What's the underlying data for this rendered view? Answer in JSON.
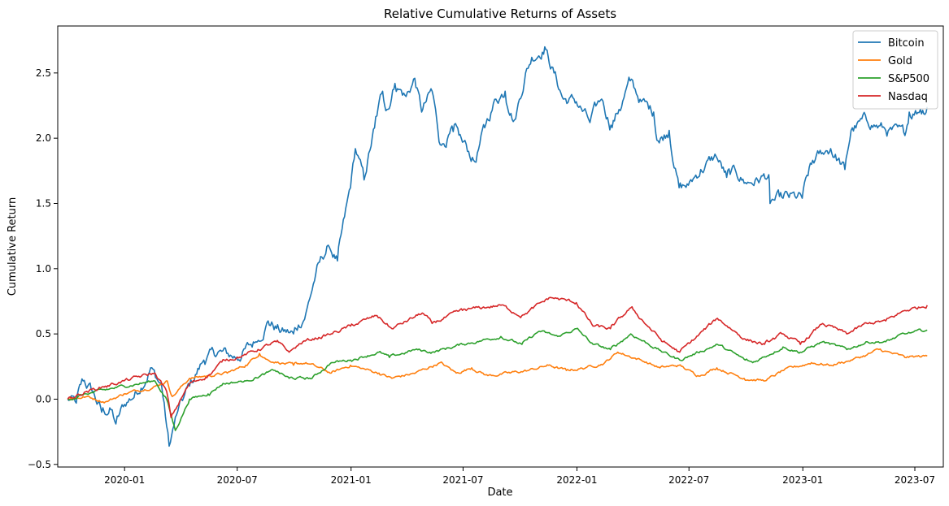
{
  "chart_data": {
    "type": "line",
    "title": "Relative Cumulative Returns of Assets",
    "xlabel": "Date",
    "ylabel": "Cumulative Return",
    "xlim": [
      "2019-09-15",
      "2023-08-16"
    ],
    "ylim": [
      -0.52,
      2.86
    ],
    "x_ticks": [
      "2020-01-01",
      "2020-07-01",
      "2021-01-01",
      "2021-07-01",
      "2022-01-01",
      "2022-07-01",
      "2023-01-01",
      "2023-07-01"
    ],
    "x_tick_labels": [
      "2020-01",
      "2020-07",
      "2021-01",
      "2021-07",
      "2022-01",
      "2022-07",
      "2023-01",
      "2023-07"
    ],
    "y_ticks": [
      -0.5,
      0.0,
      0.5,
      1.0,
      1.5,
      2.0,
      2.5
    ],
    "y_tick_labels": [
      "−0.5",
      "0.0",
      "0.5",
      "1.0",
      "1.5",
      "2.0",
      "2.5"
    ],
    "grid": false,
    "legend_position": "top-right",
    "series": [
      {
        "name": "Bitcoin",
        "color": "#1f77b4",
        "points": [
          [
            "2019-10-01",
            0.0
          ],
          [
            "2019-10-15",
            -0.03
          ],
          [
            "2019-10-26",
            0.14
          ],
          [
            "2019-11-10",
            0.06
          ],
          [
            "2019-11-25",
            -0.1
          ],
          [
            "2019-12-10",
            -0.08
          ],
          [
            "2019-12-18",
            -0.19
          ],
          [
            "2020-01-01",
            -0.04
          ],
          [
            "2020-01-20",
            0.05
          ],
          [
            "2020-02-12",
            0.24
          ],
          [
            "2020-03-01",
            0.1
          ],
          [
            "2020-03-13",
            -0.36
          ],
          [
            "2020-03-25",
            -0.12
          ],
          [
            "2020-04-15",
            0.1
          ],
          [
            "2020-05-08",
            0.3
          ],
          [
            "2020-05-31",
            0.36
          ],
          [
            "2020-06-30",
            0.32
          ],
          [
            "2020-07-31",
            0.44
          ],
          [
            "2020-08-20",
            0.6
          ],
          [
            "2020-09-10",
            0.52
          ],
          [
            "2020-09-30",
            0.5
          ],
          [
            "2020-10-20",
            0.66
          ],
          [
            "2020-11-05",
            0.96
          ],
          [
            "2020-11-25",
            1.18
          ],
          [
            "2020-12-10",
            1.06
          ],
          [
            "2020-12-31",
            1.62
          ],
          [
            "2021-01-08",
            1.92
          ],
          [
            "2021-01-22",
            1.68
          ],
          [
            "2021-02-08",
            2.08
          ],
          [
            "2021-02-21",
            2.36
          ],
          [
            "2021-02-28",
            2.22
          ],
          [
            "2021-03-13",
            2.42
          ],
          [
            "2021-03-31",
            2.32
          ],
          [
            "2021-04-14",
            2.46
          ],
          [
            "2021-04-25",
            2.2
          ],
          [
            "2021-05-12",
            2.36
          ],
          [
            "2021-05-25",
            1.95
          ],
          [
            "2021-06-15",
            2.05
          ],
          [
            "2021-06-30",
            1.97
          ],
          [
            "2021-07-20",
            1.82
          ],
          [
            "2021-08-05",
            2.08
          ],
          [
            "2021-08-23",
            2.3
          ],
          [
            "2021-09-07",
            2.36
          ],
          [
            "2021-09-22",
            2.14
          ],
          [
            "2021-10-10",
            2.5
          ],
          [
            "2021-10-20",
            2.62
          ],
          [
            "2021-11-10",
            2.7
          ],
          [
            "2021-11-25",
            2.5
          ],
          [
            "2021-12-10",
            2.3
          ],
          [
            "2021-12-31",
            2.28
          ],
          [
            "2022-01-22",
            2.12
          ],
          [
            "2022-02-10",
            2.3
          ],
          [
            "2022-02-25",
            2.1
          ],
          [
            "2022-03-10",
            2.22
          ],
          [
            "2022-03-28",
            2.44
          ],
          [
            "2022-04-15",
            2.28
          ],
          [
            "2022-05-05",
            2.2
          ],
          [
            "2022-05-12",
            1.98
          ],
          [
            "2022-05-30",
            2.06
          ],
          [
            "2022-06-15",
            1.62
          ],
          [
            "2022-06-30",
            1.64
          ],
          [
            "2022-07-20",
            1.76
          ],
          [
            "2022-08-14",
            1.86
          ],
          [
            "2022-08-31",
            1.7
          ],
          [
            "2022-09-15",
            1.74
          ],
          [
            "2022-09-30",
            1.66
          ],
          [
            "2022-10-20",
            1.68
          ],
          [
            "2022-11-07",
            1.72
          ],
          [
            "2022-11-09",
            1.5
          ],
          [
            "2022-11-30",
            1.54
          ],
          [
            "2022-12-31",
            1.54
          ],
          [
            "2023-01-15",
            1.8
          ],
          [
            "2023-01-31",
            1.88
          ],
          [
            "2023-02-15",
            1.92
          ],
          [
            "2023-03-10",
            1.76
          ],
          [
            "2023-03-20",
            2.06
          ],
          [
            "2023-04-14",
            2.14
          ],
          [
            "2023-04-30",
            2.1
          ],
          [
            "2023-05-15",
            2.06
          ],
          [
            "2023-06-15",
            2.02
          ],
          [
            "2023-06-22",
            2.2
          ],
          [
            "2023-07-10",
            2.22
          ],
          [
            "2023-07-21",
            2.24
          ]
        ]
      },
      {
        "name": "Gold",
        "color": "#ff7f0e",
        "points": [
          [
            "2019-10-01",
            0.0
          ],
          [
            "2019-11-01",
            0.02
          ],
          [
            "2019-12-01",
            -0.02
          ],
          [
            "2019-12-31",
            0.04
          ],
          [
            "2020-02-20",
            0.1
          ],
          [
            "2020-03-10",
            0.14
          ],
          [
            "2020-03-18",
            0.02
          ],
          [
            "2020-04-15",
            0.16
          ],
          [
            "2020-05-15",
            0.18
          ],
          [
            "2020-06-15",
            0.2
          ],
          [
            "2020-07-15",
            0.26
          ],
          [
            "2020-08-06",
            0.35
          ],
          [
            "2020-08-20",
            0.3
          ],
          [
            "2020-09-30",
            0.26
          ],
          [
            "2020-10-20",
            0.28
          ],
          [
            "2020-11-30",
            0.2
          ],
          [
            "2020-12-31",
            0.26
          ],
          [
            "2021-01-15",
            0.24
          ],
          [
            "2021-02-15",
            0.2
          ],
          [
            "2021-03-08",
            0.16
          ],
          [
            "2021-04-15",
            0.2
          ],
          [
            "2021-05-25",
            0.28
          ],
          [
            "2021-06-20",
            0.2
          ],
          [
            "2021-07-15",
            0.24
          ],
          [
            "2021-08-10",
            0.18
          ],
          [
            "2021-09-15",
            0.2
          ],
          [
            "2021-10-15",
            0.22
          ],
          [
            "2021-11-16",
            0.26
          ],
          [
            "2021-12-15",
            0.22
          ],
          [
            "2022-01-15",
            0.24
          ],
          [
            "2022-02-15",
            0.28
          ],
          [
            "2022-03-08",
            0.36
          ],
          [
            "2022-04-15",
            0.3
          ],
          [
            "2022-05-15",
            0.24
          ],
          [
            "2022-06-15",
            0.26
          ],
          [
            "2022-07-15",
            0.18
          ],
          [
            "2022-08-15",
            0.24
          ],
          [
            "2022-09-28",
            0.16
          ],
          [
            "2022-11-01",
            0.14
          ],
          [
            "2022-12-01",
            0.22
          ],
          [
            "2023-01-15",
            0.28
          ],
          [
            "2023-02-15",
            0.26
          ],
          [
            "2023-03-20",
            0.3
          ],
          [
            "2023-04-15",
            0.34
          ],
          [
            "2023-05-04",
            0.38
          ],
          [
            "2023-06-15",
            0.32
          ],
          [
            "2023-07-21",
            0.33
          ]
        ]
      },
      {
        "name": "S&P500",
        "color": "#2ca02c",
        "points": [
          [
            "2019-10-01",
            0.0
          ],
          [
            "2019-11-01",
            0.04
          ],
          [
            "2019-12-01",
            0.07
          ],
          [
            "2019-12-31",
            0.1
          ],
          [
            "2020-02-19",
            0.14
          ],
          [
            "2020-03-09",
            0.0
          ],
          [
            "2020-03-23",
            -0.24
          ],
          [
            "2020-04-15",
            0.0
          ],
          [
            "2020-05-15",
            0.04
          ],
          [
            "2020-06-08",
            0.12
          ],
          [
            "2020-07-15",
            0.14
          ],
          [
            "2020-08-31",
            0.22
          ],
          [
            "2020-09-23",
            0.16
          ],
          [
            "2020-10-30",
            0.16
          ],
          [
            "2020-11-30",
            0.28
          ],
          [
            "2020-12-31",
            0.3
          ],
          [
            "2021-02-15",
            0.36
          ],
          [
            "2021-03-04",
            0.32
          ],
          [
            "2021-04-15",
            0.38
          ],
          [
            "2021-05-12",
            0.36
          ],
          [
            "2021-06-30",
            0.42
          ],
          [
            "2021-08-31",
            0.48
          ],
          [
            "2021-10-04",
            0.42
          ],
          [
            "2021-11-01",
            0.52
          ],
          [
            "2021-12-01",
            0.48
          ],
          [
            "2021-12-31",
            0.54
          ],
          [
            "2022-01-27",
            0.42
          ],
          [
            "2022-02-24",
            0.38
          ],
          [
            "2022-03-29",
            0.5
          ],
          [
            "2022-05-20",
            0.36
          ],
          [
            "2022-06-16",
            0.3
          ],
          [
            "2022-08-16",
            0.42
          ],
          [
            "2022-09-30",
            0.3
          ],
          [
            "2022-10-12",
            0.28
          ],
          [
            "2022-11-30",
            0.4
          ],
          [
            "2022-12-28",
            0.36
          ],
          [
            "2023-02-02",
            0.44
          ],
          [
            "2023-03-13",
            0.38
          ],
          [
            "2023-04-15",
            0.44
          ],
          [
            "2023-05-15",
            0.44
          ],
          [
            "2023-06-15",
            0.5
          ],
          [
            "2023-07-21",
            0.53
          ]
        ]
      },
      {
        "name": "Nasdaq",
        "color": "#d62728",
        "points": [
          [
            "2019-10-01",
            0.0
          ],
          [
            "2019-11-01",
            0.06
          ],
          [
            "2019-12-01",
            0.1
          ],
          [
            "2019-12-31",
            0.14
          ],
          [
            "2020-02-19",
            0.2
          ],
          [
            "2020-03-09",
            0.06
          ],
          [
            "2020-03-16",
            -0.14
          ],
          [
            "2020-04-15",
            0.12
          ],
          [
            "2020-05-15",
            0.18
          ],
          [
            "2020-06-10",
            0.3
          ],
          [
            "2020-07-15",
            0.34
          ],
          [
            "2020-09-02",
            0.44
          ],
          [
            "2020-09-23",
            0.36
          ],
          [
            "2020-10-15",
            0.44
          ],
          [
            "2020-11-30",
            0.5
          ],
          [
            "2020-12-31",
            0.56
          ],
          [
            "2021-02-12",
            0.64
          ],
          [
            "2021-03-08",
            0.54
          ],
          [
            "2021-04-26",
            0.66
          ],
          [
            "2021-05-12",
            0.58
          ],
          [
            "2021-06-30",
            0.68
          ],
          [
            "2021-08-31",
            0.72
          ],
          [
            "2021-10-04",
            0.64
          ],
          [
            "2021-11-19",
            0.78
          ],
          [
            "2021-12-31",
            0.74
          ],
          [
            "2022-01-27",
            0.56
          ],
          [
            "2022-02-24",
            0.54
          ],
          [
            "2022-03-29",
            0.7
          ],
          [
            "2022-05-20",
            0.44
          ],
          [
            "2022-06-16",
            0.36
          ],
          [
            "2022-08-16",
            0.62
          ],
          [
            "2022-09-30",
            0.46
          ],
          [
            "2022-10-31",
            0.42
          ],
          [
            "2022-11-30",
            0.5
          ],
          [
            "2022-12-28",
            0.42
          ],
          [
            "2023-02-02",
            0.58
          ],
          [
            "2023-03-13",
            0.5
          ],
          [
            "2023-04-15",
            0.58
          ],
          [
            "2023-05-15",
            0.6
          ],
          [
            "2023-06-15",
            0.68
          ],
          [
            "2023-07-21",
            0.72
          ]
        ]
      }
    ]
  }
}
